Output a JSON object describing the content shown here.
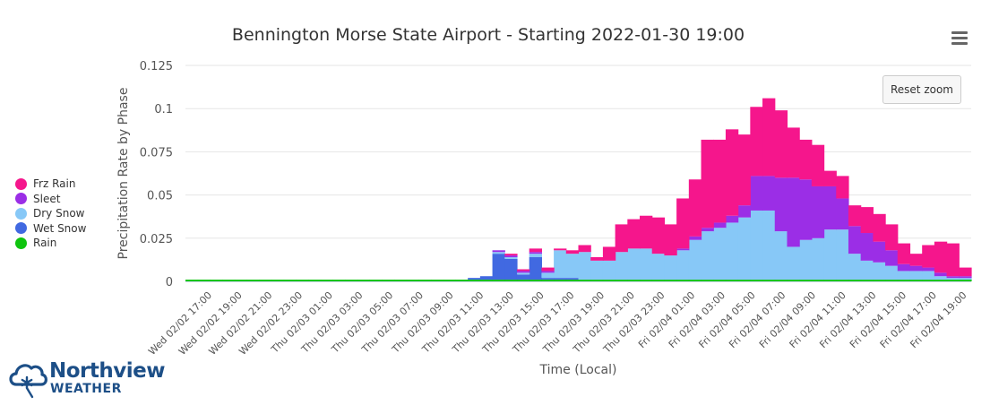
{
  "chart_data": {
    "type": "area",
    "stacking": "normal",
    "step": true,
    "title": "Bennington Morse State Airport - Starting 2022-01-30 19:00",
    "xlabel": "Time (Local)",
    "ylabel": "Precipitation Rate by Phase",
    "ylim": [
      0,
      0.125
    ],
    "yticks": [
      "0",
      "0.025",
      "0.05",
      "0.075",
      "0.1",
      "0.125"
    ],
    "grid": true,
    "legend_placement": "left",
    "reset_zoom_label": "Reset zoom",
    "x_tick_labels": [
      "Wed 02/02 17:00",
      "Wed 02/02 19:00",
      "Wed 02/02 21:00",
      "Wed 02/02 23:00",
      "Thu 02/03 01:00",
      "Thu 02/03 03:00",
      "Thu 02/03 05:00",
      "Thu 02/03 07:00",
      "Thu 02/03 09:00",
      "Thu 02/03 11:00",
      "Thu 02/03 13:00",
      "Thu 02/03 15:00",
      "Thu 02/03 17:00",
      "Thu 02/03 19:00",
      "Thu 02/03 21:00",
      "Thu 02/03 23:00",
      "Fri 02/04 01:00",
      "Fri 02/04 03:00",
      "Fri 02/04 05:00",
      "Fri 02/04 07:00",
      "Fri 02/04 09:00",
      "Fri 02/04 11:00",
      "Fri 02/04 13:00",
      "Fri 02/04 15:00",
      "Fri 02/04 17:00",
      "Fri 02/04 19:00"
    ],
    "series": [
      {
        "name": "Frz Rain",
        "color": "#f5168c",
        "values": [
          0,
          0,
          0,
          0,
          0,
          0,
          0,
          0,
          0,
          0,
          0,
          0,
          0,
          0,
          0,
          0,
          0,
          0,
          0,
          0,
          0,
          0,
          0,
          0,
          0,
          0,
          0.001,
          0.001,
          0.002,
          0.002,
          0.001,
          0.002,
          0.004,
          0.002,
          0.008,
          0.016,
          0.017,
          0.019,
          0.021,
          0.018,
          0.029,
          0.033,
          0.051,
          0.048,
          0.05,
          0.041,
          0.04,
          0.045,
          0.039,
          0.029,
          0.023,
          0.024,
          0.009,
          0.013,
          0.012,
          0.015,
          0.016,
          0.015,
          0.012,
          0.007,
          0.013,
          0.018,
          0.019,
          0.005
        ]
      },
      {
        "name": "Sleet",
        "color": "#9b2ee6",
        "values": [
          0,
          0,
          0,
          0,
          0,
          0,
          0,
          0,
          0,
          0,
          0,
          0,
          0,
          0,
          0,
          0,
          0,
          0,
          0,
          0,
          0,
          0,
          0,
          0,
          0,
          0.001,
          0.001,
          0.001,
          0.001,
          0.001,
          0,
          0,
          0,
          0,
          0,
          0,
          0,
          0,
          0,
          0,
          0.001,
          0.002,
          0.002,
          0.003,
          0.004,
          0.007,
          0.02,
          0.02,
          0.031,
          0.04,
          0.035,
          0.03,
          0.025,
          0.018,
          0.016,
          0.016,
          0.012,
          0.009,
          0.004,
          0.003,
          0.002,
          0.002,
          0.001,
          0.001
        ]
      },
      {
        "name": "Dry Snow",
        "color": "#87c8f7",
        "values": [
          0,
          0,
          0,
          0,
          0,
          0,
          0,
          0,
          0,
          0,
          0,
          0,
          0,
          0,
          0,
          0,
          0,
          0,
          0,
          0,
          0,
          0,
          0,
          0,
          0,
          0.001,
          0.001,
          0.001,
          0.002,
          0.003,
          0.016,
          0.014,
          0.016,
          0.011,
          0.011,
          0.016,
          0.018,
          0.018,
          0.015,
          0.014,
          0.017,
          0.023,
          0.028,
          0.03,
          0.033,
          0.036,
          0.04,
          0.04,
          0.028,
          0.019,
          0.023,
          0.024,
          0.029,
          0.029,
          0.015,
          0.011,
          0.01,
          0.008,
          0.005,
          0.005,
          0.005,
          0.002,
          0.001,
          0.001
        ]
      },
      {
        "name": "Wet Snow",
        "color": "#4169e1",
        "values": [
          0,
          0,
          0,
          0,
          0,
          0,
          0,
          0,
          0,
          0,
          0,
          0,
          0,
          0,
          0,
          0,
          0,
          0,
          0,
          0,
          0,
          0,
          0,
          0.001,
          0.002,
          0.015,
          0.012,
          0.003,
          0.013,
          0.001,
          0.001,
          0.001,
          0,
          0,
          0,
          0,
          0,
          0,
          0,
          0,
          0,
          0,
          0,
          0,
          0,
          0,
          0,
          0,
          0,
          0,
          0,
          0,
          0,
          0,
          0,
          0,
          0,
          0,
          0,
          0,
          0,
          0,
          0,
          0
        ]
      },
      {
        "name": "Rain",
        "color": "#0fc40f",
        "values": [
          0.001,
          0.001,
          0.001,
          0.001,
          0.001,
          0.001,
          0.001,
          0.001,
          0.001,
          0.001,
          0.001,
          0.001,
          0.001,
          0.001,
          0.001,
          0.001,
          0.001,
          0.001,
          0.001,
          0.001,
          0.001,
          0.001,
          0.001,
          0.001,
          0.001,
          0.001,
          0.001,
          0.001,
          0.001,
          0.001,
          0.001,
          0.001,
          0.001,
          0.001,
          0.001,
          0.001,
          0.001,
          0.001,
          0.001,
          0.001,
          0.001,
          0.001,
          0.001,
          0.001,
          0.001,
          0.001,
          0.001,
          0.001,
          0.001,
          0.001,
          0.001,
          0.001,
          0.001,
          0.001,
          0.001,
          0.001,
          0.001,
          0.001,
          0.001,
          0.001,
          0.001,
          0.001,
          0.001,
          0.001
        ]
      }
    ]
  },
  "legend": {
    "items": [
      {
        "label": "Frz Rain",
        "color": "#f5168c"
      },
      {
        "label": "Sleet",
        "color": "#9b2ee6"
      },
      {
        "label": "Dry Snow",
        "color": "#87c8f7"
      },
      {
        "label": "Wet Snow",
        "color": "#4169e1"
      },
      {
        "label": "Rain",
        "color": "#0fc40f"
      }
    ]
  },
  "logo": {
    "name": "Northview",
    "sub": "WEATHER",
    "icon": "cloud-snowflake-icon",
    "color": "#1d4f87"
  },
  "menu": {
    "icon": "hamburger-menu-icon"
  }
}
